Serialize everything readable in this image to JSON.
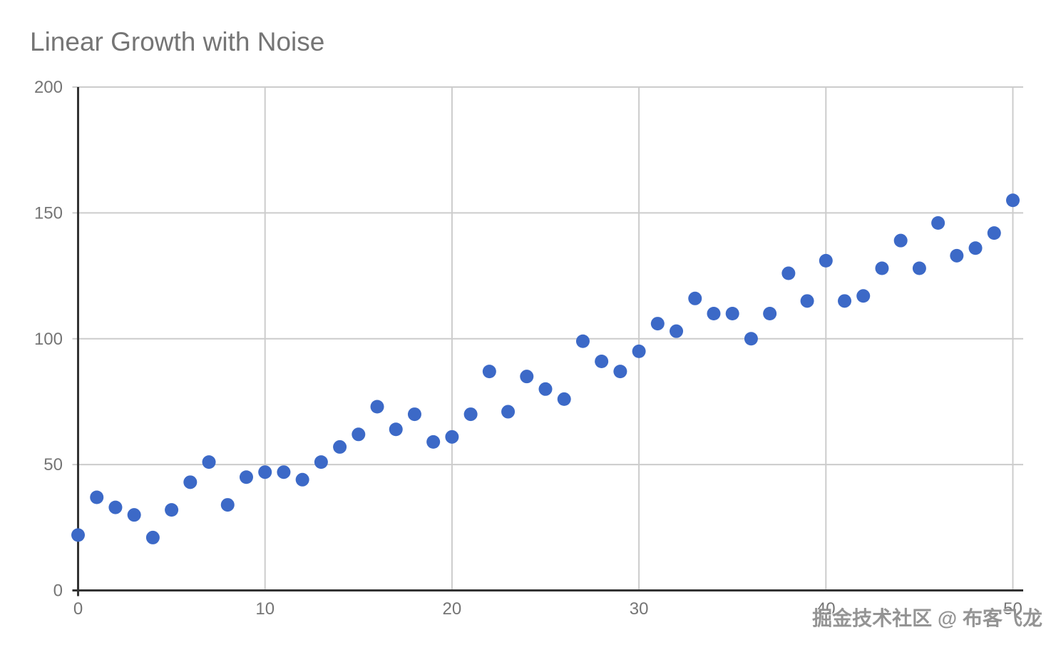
{
  "page": {
    "background": "#ffffff"
  },
  "watermark": {
    "text": "掘金技术社区 @ 布客飞龙"
  },
  "chart_data": {
    "type": "scatter",
    "title": "Linear Growth with Noise",
    "xlabel": "",
    "ylabel": "",
    "x": [
      0,
      1,
      2,
      3,
      4,
      5,
      6,
      7,
      8,
      9,
      10,
      11,
      12,
      13,
      14,
      15,
      16,
      17,
      18,
      19,
      20,
      21,
      22,
      23,
      24,
      25,
      26,
      27,
      28,
      29,
      30,
      31,
      32,
      33,
      34,
      35,
      36,
      37,
      38,
      39,
      40,
      41,
      42,
      43,
      44,
      45,
      46,
      47,
      48,
      49,
      50
    ],
    "y": [
      22,
      37,
      33,
      30,
      21,
      32,
      43,
      51,
      34,
      45,
      47,
      47,
      44,
      51,
      57,
      62,
      73,
      64,
      70,
      59,
      61,
      70,
      87,
      71,
      85,
      80,
      76,
      99,
      91,
      87,
      95,
      106,
      103,
      116,
      110,
      110,
      100,
      110,
      126,
      115,
      131,
      115,
      117,
      128,
      139,
      128,
      146,
      133,
      136,
      142,
      155
    ],
    "x_ticks": [
      0,
      10,
      20,
      30,
      40,
      50
    ],
    "y_ticks": [
      0,
      50,
      100,
      150,
      200
    ],
    "xlim": [
      0,
      50
    ],
    "ylim": [
      0,
      200
    ],
    "grid": true,
    "legend": "none",
    "colors": {
      "point": "#3C69C7",
      "grid": "#cccccc",
      "axis": "#333333",
      "tick_label": "#757575",
      "title": "#757575",
      "background": "#ffffff"
    }
  }
}
